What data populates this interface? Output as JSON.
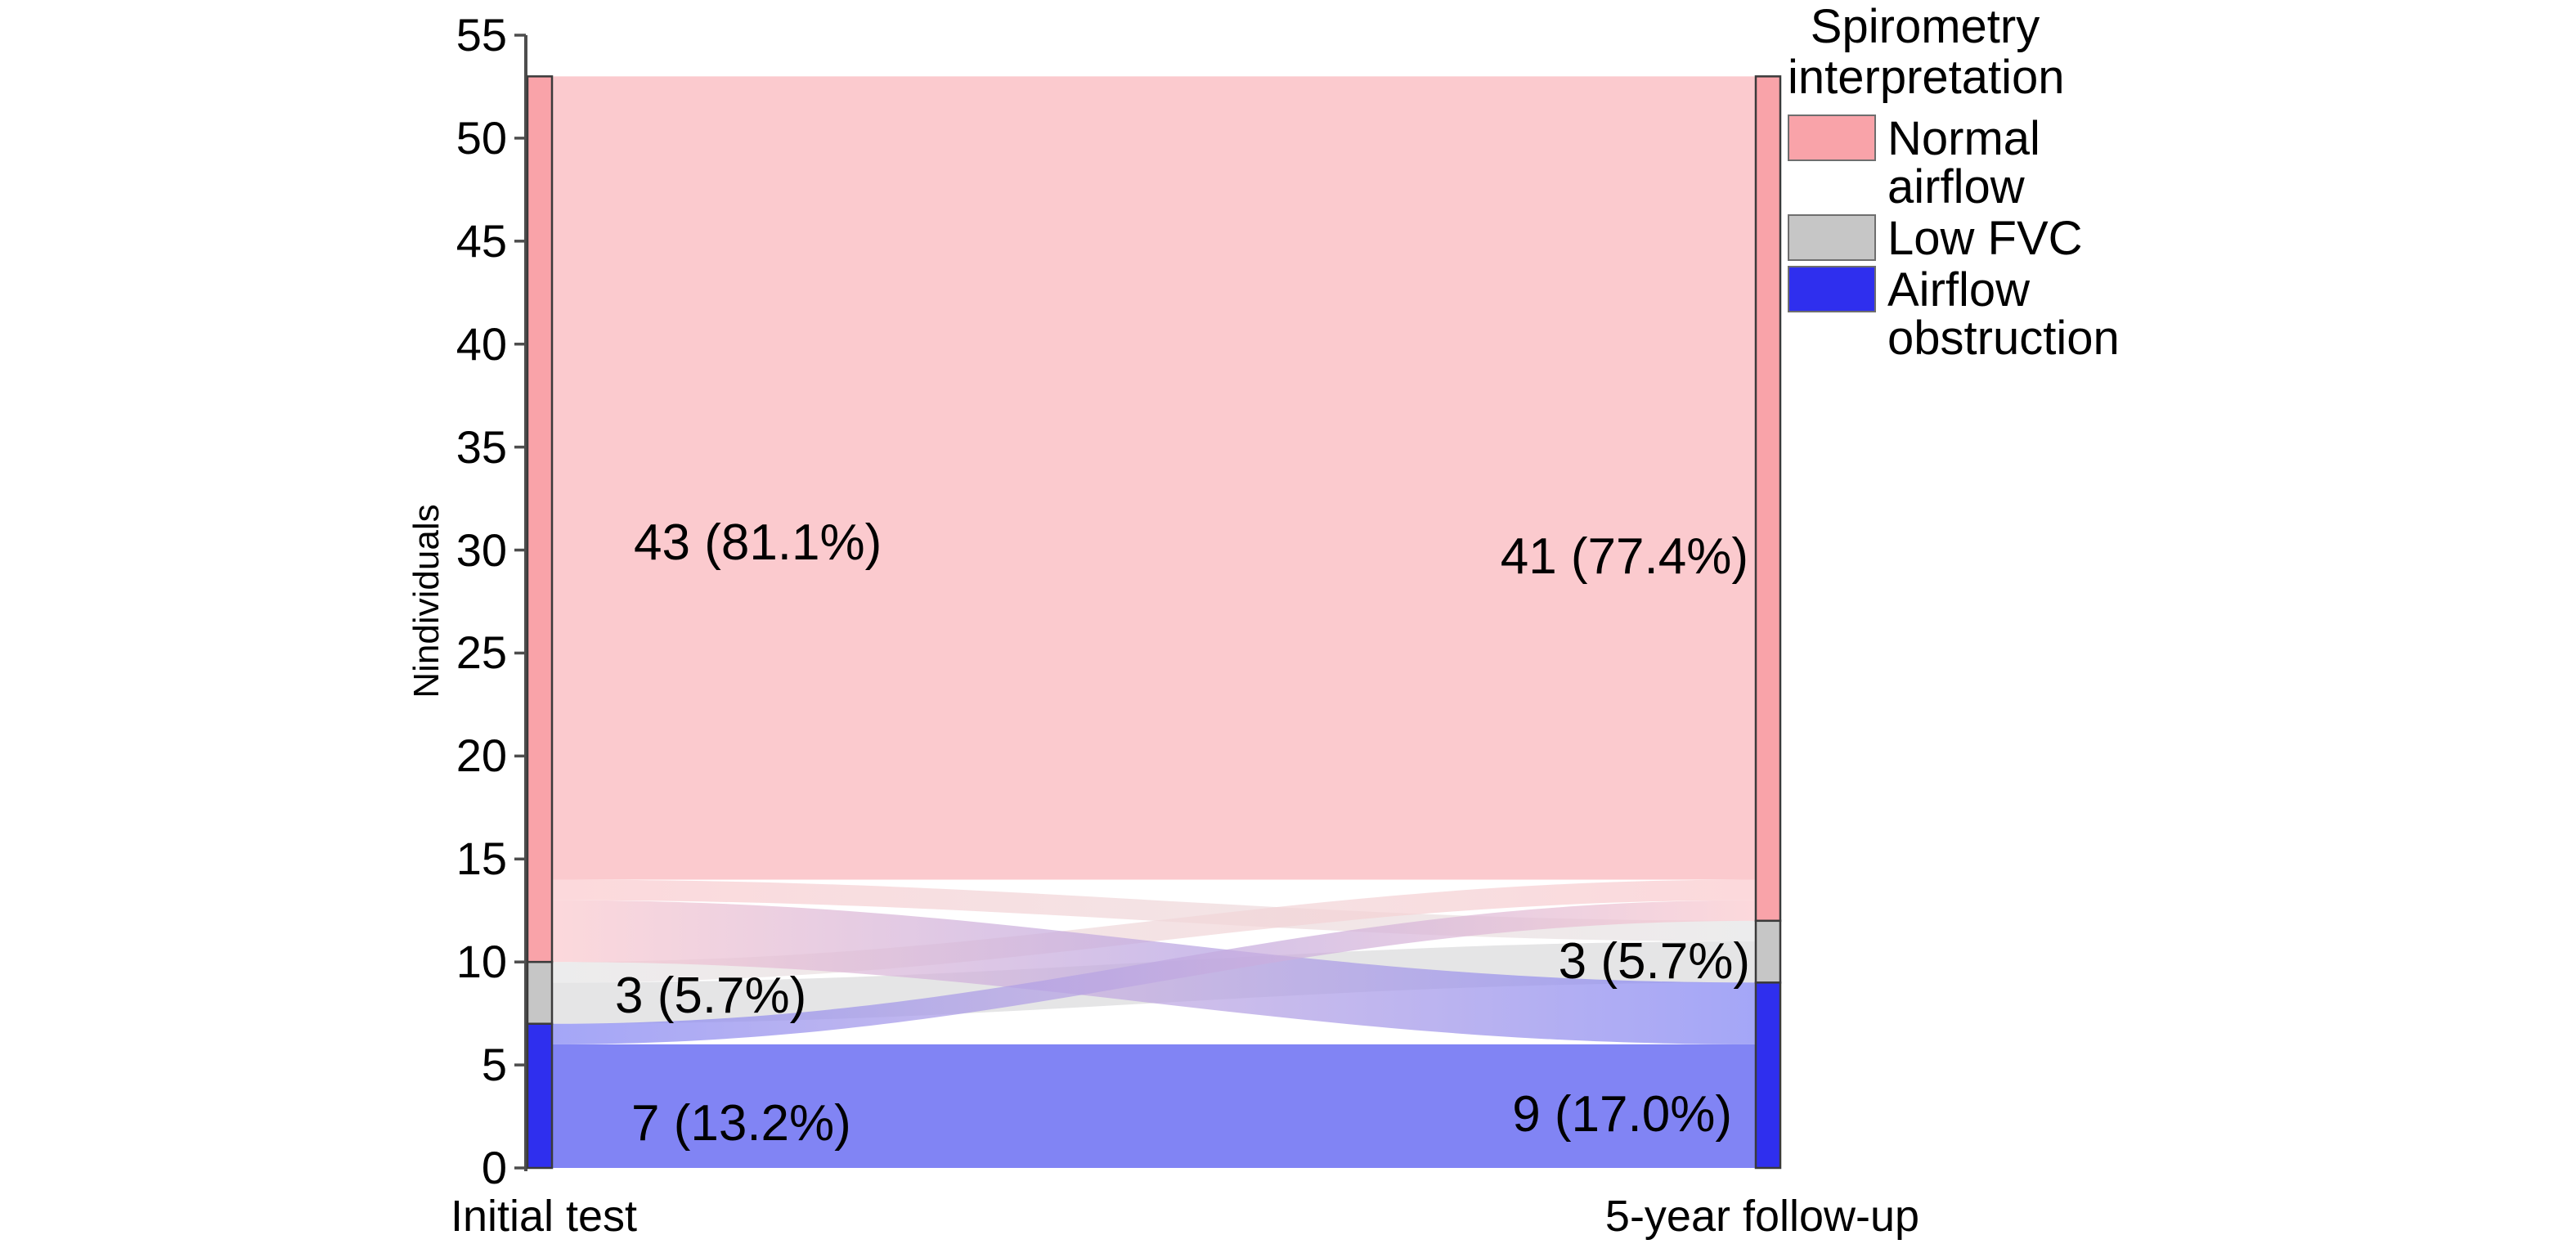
{
  "chart_data": {
    "type": "sankey",
    "title": "",
    "ylabel": "Nindividuals",
    "ylim": [
      0,
      55
    ],
    "yticks": [
      0,
      5,
      10,
      15,
      20,
      25,
      30,
      35,
      40,
      45,
      50,
      55
    ],
    "grid": "off",
    "legend_position": "top-right",
    "axes": [
      {
        "id": "initial",
        "label": "Initial test"
      },
      {
        "id": "followup",
        "label": "5-year follow-up"
      }
    ],
    "categories": [
      {
        "id": "normal",
        "label": "Normal airflow",
        "node_color": "#F9A3A9",
        "ribbon_color": "#FBCACE"
      },
      {
        "id": "low_fvc",
        "label": "Low FVC",
        "node_color": "#C6C6C6",
        "ribbon_color": "#E5E5E6"
      },
      {
        "id": "obstruction",
        "label": "Airflow obstruction",
        "node_color": "#2F2FEE",
        "ribbon_color": "#8184F4"
      }
    ],
    "nodes": {
      "initial": [
        {
          "category": "normal",
          "value": 43
        },
        {
          "category": "low_fvc",
          "value": 3
        },
        {
          "category": "obstruction",
          "value": 7
        }
      ],
      "followup": [
        {
          "category": "normal",
          "value": 41
        },
        {
          "category": "low_fvc",
          "value": 3
        },
        {
          "category": "obstruction",
          "value": 9
        }
      ]
    },
    "flows": [
      {
        "from": "normal",
        "to": "normal",
        "value": 39
      },
      {
        "from": "normal",
        "to": "low_fvc",
        "value": 1
      },
      {
        "from": "normal",
        "to": "obstruction",
        "value": 3
      },
      {
        "from": "low_fvc",
        "to": "normal",
        "value": 1
      },
      {
        "from": "low_fvc",
        "to": "low_fvc",
        "value": 2
      },
      {
        "from": "obstruction",
        "to": "normal",
        "value": 1
      },
      {
        "from": "obstruction",
        "to": "obstruction",
        "value": 6
      }
    ],
    "node_labels": [
      {
        "axis": "initial",
        "category": "normal",
        "text": "43 (81.1%)"
      },
      {
        "axis": "initial",
        "category": "low_fvc",
        "text": "3 (5.7%)"
      },
      {
        "axis": "initial",
        "category": "obstruction",
        "text": "7 (13.2%)"
      },
      {
        "axis": "followup",
        "category": "normal",
        "text": "41 (77.4%)"
      },
      {
        "axis": "followup",
        "category": "low_fvc",
        "text": "3 (5.7%)"
      },
      {
        "axis": "followup",
        "category": "obstruction",
        "text": "9 (17.0%)"
      }
    ],
    "legend": {
      "title_lines": [
        "Spirometry",
        "interpretation"
      ],
      "entries": [
        "Normal airflow",
        "Low FVC",
        "Airflow obstruction"
      ]
    },
    "colors": {
      "axis": "#4d4d4d",
      "node_border": "#3a3a3a",
      "background": "#ffffff"
    }
  }
}
